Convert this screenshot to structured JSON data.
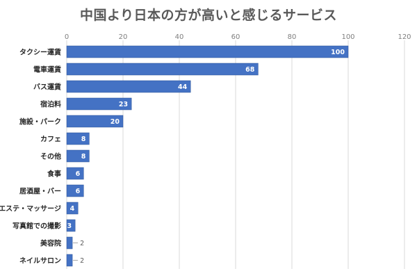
{
  "chart_data": {
    "type": "bar",
    "orientation": "horizontal",
    "title": "中国より日本の方が高いと感じるサービス",
    "categories": [
      "タクシー運賃",
      "電車運賃",
      "バス運賃",
      "宿泊料",
      "施設・パーク",
      "カフェ",
      "その他",
      "食事",
      "居酒屋・バー",
      "エステ・マッサージ",
      "写真館での撮影",
      "美容院",
      "ネイルサロン"
    ],
    "values": [
      100,
      68,
      44,
      23,
      20,
      8,
      8,
      6,
      6,
      4,
      3,
      2,
      2
    ],
    "xlim": [
      0,
      120
    ],
    "xticks": [
      0,
      20,
      40,
      60,
      80,
      100,
      120
    ],
    "x_axis_position": "top",
    "grid": true,
    "data_labels": true,
    "colors": {
      "bar": "#4472c4",
      "bar_edge": "#2f5597",
      "grid": "#d9d9d9"
    }
  }
}
